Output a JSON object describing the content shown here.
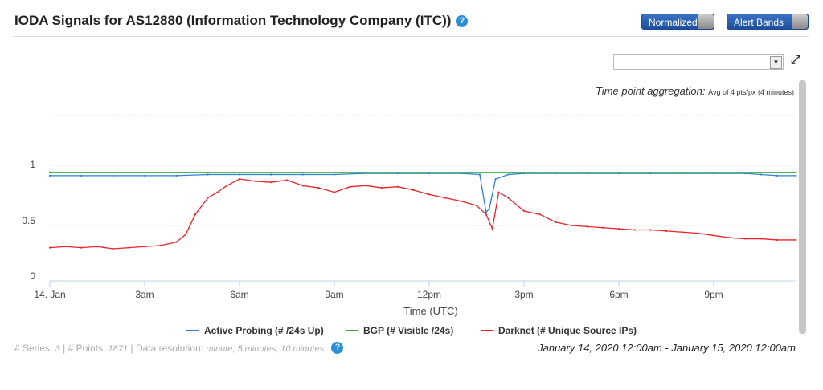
{
  "header": {
    "title": "IODA Signals for AS12880 (Information Technology Company (ITC))",
    "help_icon": "question-circle-icon"
  },
  "toggles": {
    "normalized": "Normalized",
    "alert_bands": "Alert Bands"
  },
  "select": {
    "value": ""
  },
  "aggregation": {
    "label": "Time point aggregation:",
    "value": "Avg of 4 pts/px (4 minutes)"
  },
  "footer": {
    "series_label": "# Series:",
    "series": "3",
    "points_label": "| # Points:",
    "points": "1871",
    "resolution_label": "| Data resolution:",
    "resolution": "minute, 5 minutes, 10 minutes",
    "range": "January 14, 2020 12:00am - January 15, 2020 12:00am"
  },
  "chart_data": {
    "type": "line",
    "xlabel": "Time (UTC)",
    "x_ticks": [
      "14. Jan",
      "3am",
      "6am",
      "9am",
      "12pm",
      "3pm",
      "6pm",
      "9pm"
    ],
    "y_ticks": [
      "0",
      "0.5",
      "1"
    ],
    "ylim": [
      0,
      1.5
    ],
    "xlim_hours": [
      0,
      24
    ],
    "legend_position": "bottom",
    "series": [
      {
        "name": "Active Probing (# /24s Up)",
        "color": "#2f7ed8",
        "x": [
          0,
          1,
          2,
          3,
          4,
          5,
          6,
          7,
          8,
          9,
          10,
          11,
          12,
          13,
          13.6,
          13.8,
          13.9,
          14.1,
          14.5,
          15,
          16,
          17,
          18,
          19,
          20,
          21,
          22,
          22.5,
          23,
          23.6
        ],
        "values": [
          0.95,
          0.95,
          0.95,
          0.95,
          0.95,
          0.96,
          0.96,
          0.96,
          0.96,
          0.96,
          0.97,
          0.97,
          0.97,
          0.97,
          0.96,
          0.62,
          0.65,
          0.92,
          0.96,
          0.97,
          0.97,
          0.97,
          0.97,
          0.97,
          0.97,
          0.97,
          0.97,
          0.96,
          0.95,
          0.95
        ]
      },
      {
        "name": "BGP (# Visible /24s)",
        "color": "#3cab3c",
        "x": [
          0,
          23.6
        ],
        "values": [
          0.98,
          0.98
        ]
      },
      {
        "name": "Darknet (# Unique Source IPs)",
        "color": "#e8242a",
        "x": [
          0,
          0.5,
          1,
          1.5,
          2,
          2.5,
          3,
          3.5,
          4,
          4.3,
          4.6,
          5,
          5.3,
          5.6,
          6,
          6.5,
          7,
          7.5,
          8,
          8.5,
          9,
          9.5,
          10,
          10.5,
          11,
          11.5,
          12,
          12.5,
          13,
          13.5,
          13.8,
          14,
          14.2,
          14.5,
          15,
          15.5,
          16,
          16.5,
          17,
          17.5,
          18,
          18.5,
          19,
          19.5,
          20,
          20.5,
          21,
          21.5,
          22,
          22.5,
          23,
          23.6
        ],
        "values": [
          0.3,
          0.31,
          0.3,
          0.31,
          0.29,
          0.3,
          0.31,
          0.32,
          0.35,
          0.42,
          0.6,
          0.75,
          0.8,
          0.86,
          0.92,
          0.9,
          0.89,
          0.91,
          0.86,
          0.84,
          0.8,
          0.85,
          0.86,
          0.84,
          0.85,
          0.82,
          0.78,
          0.75,
          0.72,
          0.68,
          0.6,
          0.47,
          0.8,
          0.75,
          0.63,
          0.6,
          0.53,
          0.5,
          0.49,
          0.48,
          0.47,
          0.46,
          0.46,
          0.45,
          0.44,
          0.43,
          0.41,
          0.39,
          0.38,
          0.38,
          0.37,
          0.37
        ]
      }
    ]
  }
}
